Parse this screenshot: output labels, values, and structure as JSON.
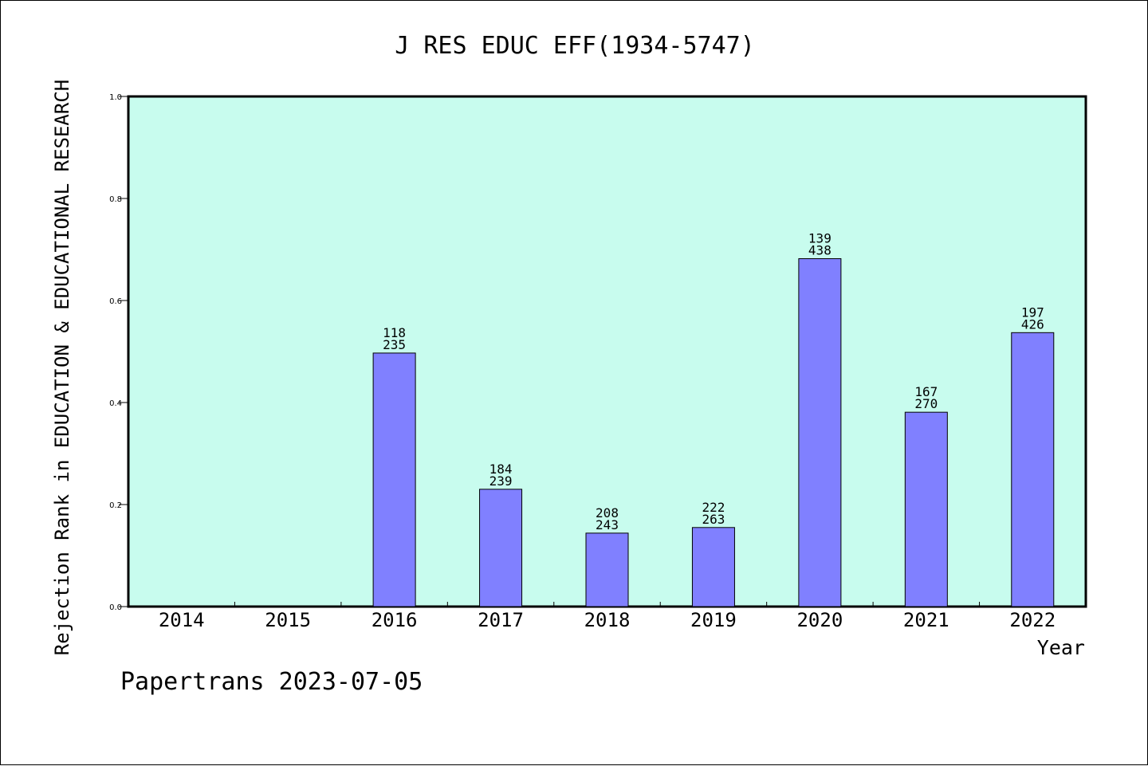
{
  "chart_data": {
    "type": "bar",
    "title": "J RES EDUC EFF(1934-5747)",
    "xlabel": "Year",
    "ylabel": "Rejection Rank in EDUCATION & EDUCATIONAL RESEARCH",
    "ylim": [
      0,
      1.0
    ],
    "yticks": [
      "0.0",
      "0.2",
      "0.4",
      "0.6",
      "0.8",
      "1.0"
    ],
    "categories": [
      "2014",
      "2015",
      "2016",
      "2017",
      "2018",
      "2019",
      "2020",
      "2021",
      "2022"
    ],
    "values": [
      null,
      null,
      0.497,
      0.23,
      0.144,
      0.155,
      0.682,
      0.381,
      0.537
    ],
    "labels_top": [
      "",
      "",
      "118",
      "184",
      "208",
      "222",
      "139",
      "167",
      "197"
    ],
    "labels_bottom": [
      "",
      "",
      "235",
      "239",
      "243",
      "263",
      "438",
      "270",
      "426"
    ],
    "grid": false,
    "legend": "none"
  },
  "footer": "Papertrans 2023-07-05",
  "colors": {
    "plot_background": "#c8fcee",
    "bar_fill": "#8080ff",
    "bar_stroke": "#000000",
    "axis": "#000000"
  }
}
